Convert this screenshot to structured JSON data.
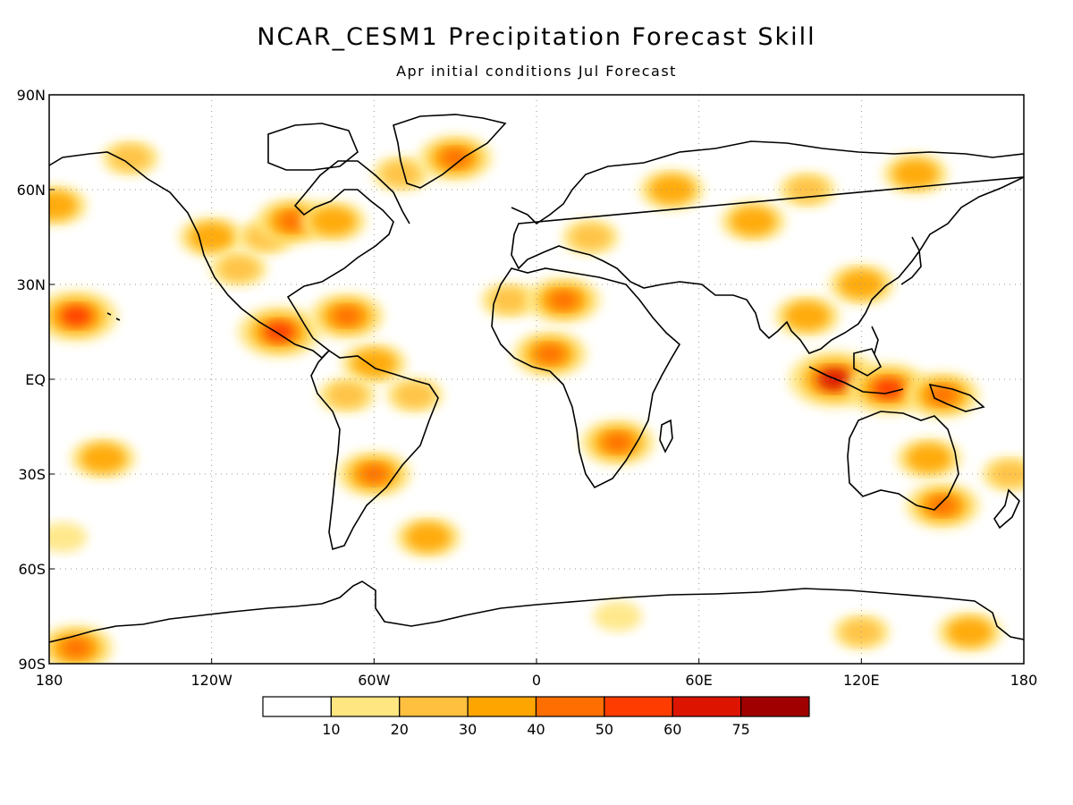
{
  "title": "NCAR_CESM1 Precipitation Forecast Skill",
  "subtitle": "Apr initial conditions   Jul Forecast",
  "map": {
    "projection": "equirectangular",
    "extent": {
      "lon": [
        -180,
        180
      ],
      "lat": [
        -90,
        90
      ]
    },
    "grid": "dotted",
    "y_tick_labels": [
      {
        "lat": 90,
        "label": "90N"
      },
      {
        "lat": 60,
        "label": "60N"
      },
      {
        "lat": 30,
        "label": "30N"
      },
      {
        "lat": 0,
        "label": "EQ"
      },
      {
        "lat": -30,
        "label": "30S"
      },
      {
        "lat": -60,
        "label": "60S"
      },
      {
        "lat": -90,
        "label": "90S"
      }
    ],
    "x_tick_labels": [
      {
        "lon": -180,
        "label": "180"
      },
      {
        "lon": -120,
        "label": "120W"
      },
      {
        "lon": -60,
        "label": "60W"
      },
      {
        "lon": 0,
        "label": "0"
      },
      {
        "lon": 60,
        "label": "60E"
      },
      {
        "lon": 120,
        "label": "120E"
      },
      {
        "lon": 180,
        "label": "180"
      }
    ]
  },
  "colorbar": {
    "colors": [
      "#ffffff",
      "#ffe680",
      "#ffc040",
      "#ffa500",
      "#ff6e00",
      "#ff3c00",
      "#dc1400",
      "#a00000"
    ],
    "labels": [
      "10",
      "20",
      "30",
      "40",
      "50",
      "60",
      "75"
    ]
  },
  "regions": [
    {
      "lon": -170,
      "lat": 20,
      "level": 5
    },
    {
      "lon": -175,
      "lat": -50,
      "level": 1
    },
    {
      "lon": -160,
      "lat": -25,
      "level": 3
    },
    {
      "lon": -178,
      "lat": 55,
      "level": 3
    },
    {
      "lon": -150,
      "lat": 70,
      "level": 2
    },
    {
      "lon": -120,
      "lat": 45,
      "level": 3
    },
    {
      "lon": -110,
      "lat": 35,
      "level": 2
    },
    {
      "lon": -100,
      "lat": 45,
      "level": 2
    },
    {
      "lon": -90,
      "lat": 50,
      "level": 4
    },
    {
      "lon": -75,
      "lat": 50,
      "level": 3
    },
    {
      "lon": -50,
      "lat": 65,
      "level": 2
    },
    {
      "lon": -30,
      "lat": 70,
      "level": 4
    },
    {
      "lon": -95,
      "lat": 15,
      "level": 5
    },
    {
      "lon": -70,
      "lat": 20,
      "level": 4
    },
    {
      "lon": -60,
      "lat": 5,
      "level": 3
    },
    {
      "lon": -70,
      "lat": -5,
      "level": 2
    },
    {
      "lon": -45,
      "lat": -5,
      "level": 2
    },
    {
      "lon": -60,
      "lat": -30,
      "level": 4
    },
    {
      "lon": -40,
      "lat": -50,
      "level": 3
    },
    {
      "lon": -10,
      "lat": 25,
      "level": 2
    },
    {
      "lon": 10,
      "lat": 25,
      "level": 4
    },
    {
      "lon": 5,
      "lat": 8,
      "level": 4
    },
    {
      "lon": 30,
      "lat": -20,
      "level": 4
    },
    {
      "lon": 20,
      "lat": 45,
      "level": 2
    },
    {
      "lon": 50,
      "lat": 60,
      "level": 3
    },
    {
      "lon": 80,
      "lat": 50,
      "level": 3
    },
    {
      "lon": 100,
      "lat": 60,
      "level": 2
    },
    {
      "lon": 140,
      "lat": 65,
      "level": 3
    },
    {
      "lon": 120,
      "lat": 30,
      "level": 3
    },
    {
      "lon": 100,
      "lat": 20,
      "level": 3
    },
    {
      "lon": 110,
      "lat": 0,
      "level": 6
    },
    {
      "lon": 130,
      "lat": -3,
      "level": 5
    },
    {
      "lon": 150,
      "lat": -5,
      "level": 4
    },
    {
      "lon": 145,
      "lat": -25,
      "level": 3
    },
    {
      "lon": 150,
      "lat": -40,
      "level": 4
    },
    {
      "lon": 175,
      "lat": -30,
      "level": 2
    },
    {
      "lon": -170,
      "lat": -85,
      "level": 4
    },
    {
      "lon": 30,
      "lat": -75,
      "level": 1
    },
    {
      "lon": 120,
      "lat": -80,
      "level": 2
    },
    {
      "lon": 160,
      "lat": -80,
      "level": 3
    }
  ]
}
